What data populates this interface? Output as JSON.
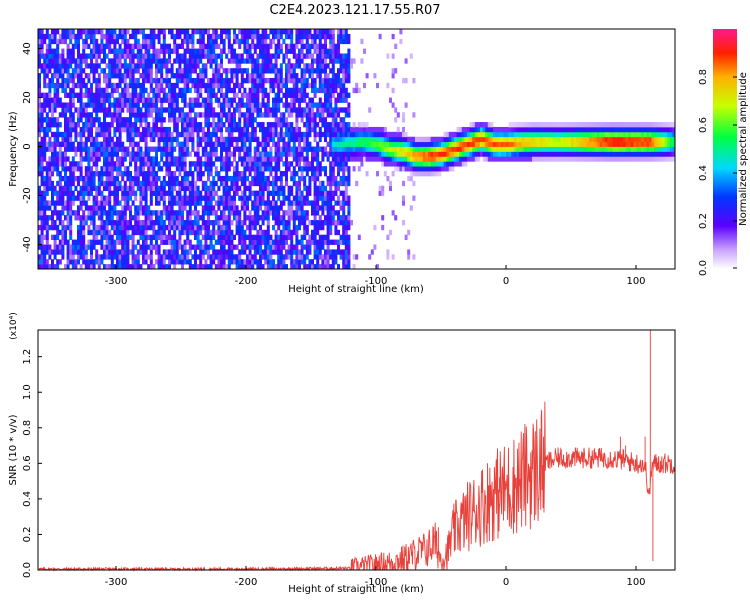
{
  "figure": {
    "title": "C2E4.2023.121.17.55.R07"
  },
  "chart_data": [
    {
      "type": "heatmap",
      "xlabel": "Height of straight line (km)",
      "ylabel": "Frequency (Hz)",
      "xlim": [
        -360,
        130
      ],
      "ylim": [
        -50,
        48
      ],
      "xticks": [
        -300,
        -200,
        -100,
        0,
        100
      ],
      "xtick_labels": [
        "-300",
        "-200",
        "-100",
        "0",
        "100"
      ],
      "yticks": [
        -40,
        -20,
        0,
        20,
        40
      ],
      "ytick_labels": [
        "-40",
        "-20",
        "0",
        "20",
        "40"
      ],
      "colorbar": {
        "label": "Normalized spectral amplitude",
        "range": [
          0,
          1
        ],
        "ticks": [
          0,
          0.2,
          0.4,
          0.6,
          0.8
        ],
        "tick_labels": [
          "0.0",
          "0.2",
          "0.4",
          "0.6",
          "0.8"
        ]
      },
      "description_of_field": {
        "noise_region_x": [
          -360,
          -120
        ],
        "noise_amplitude": [
          0.1,
          0.35
        ],
        "signal_center_frequency_by_height": [
          [
            -130,
            0
          ],
          [
            -110,
            1
          ],
          [
            -100,
            0
          ],
          [
            -90,
            -2
          ],
          [
            -80,
            -3
          ],
          [
            -70,
            -5
          ],
          [
            -60,
            -5
          ],
          [
            -50,
            -4
          ],
          [
            -40,
            -2
          ],
          [
            -30,
            0
          ],
          [
            -20,
            2
          ],
          [
            -10,
            0
          ],
          [
            0,
            0
          ],
          [
            20,
            1
          ],
          [
            40,
            1
          ],
          [
            60,
            1
          ],
          [
            80,
            1
          ],
          [
            100,
            1
          ],
          [
            130,
            1
          ]
        ],
        "signal_peak_amplitude": [
          [
            -130,
            0.45
          ],
          [
            -100,
            0.6
          ],
          [
            -80,
            0.75
          ],
          [
            -60,
            0.9
          ],
          [
            -40,
            0.9
          ],
          [
            -20,
            0.9
          ],
          [
            0,
            0.85
          ],
          [
            40,
            0.7
          ],
          [
            80,
            0.95
          ],
          [
            110,
            0.9
          ],
          [
            130,
            0.5
          ]
        ]
      },
      "grid": false,
      "legend": "none"
    },
    {
      "type": "line",
      "xlabel": "Height of straight line (km)",
      "ylabel": "SNR (10 * v/v)",
      "y_multiplier_label": "(x10⁴)",
      "xlim": [
        -360,
        130
      ],
      "ylim": [
        0,
        1.35
      ],
      "xticks": [
        -300,
        -200,
        -100,
        0,
        100
      ],
      "xtick_labels": [
        "-300",
        "-200",
        "-100",
        "0",
        "100"
      ],
      "yticks": [
        0,
        0.2,
        0.4,
        0.6,
        0.8,
        1.0,
        1.2
      ],
      "ytick_labels": [
        "0.0",
        "0.2",
        "0.4",
        "0.6",
        "0.8",
        "1.0",
        "1.2"
      ],
      "series": [
        {
          "color": "#e8403a",
          "x": [
            -360,
            -300,
            -250,
            -200,
            -150,
            -120,
            -100,
            -90,
            -80,
            -70,
            -60,
            -55,
            -50,
            -45,
            -40,
            -30,
            -20,
            -10,
            0,
            10,
            20,
            30,
            40,
            60,
            80,
            90,
            100,
            105,
            108,
            110,
            112,
            115,
            120,
            125,
            130
          ],
          "values": [
            0.005,
            0.005,
            0.005,
            0.005,
            0.008,
            0.01,
            0.03,
            0.04,
            0.06,
            0.09,
            0.12,
            0.16,
            0.06,
            0.1,
            0.22,
            0.3,
            0.36,
            0.42,
            0.45,
            0.5,
            0.55,
            0.6,
            0.63,
            0.63,
            0.63,
            0.62,
            0.6,
            0.6,
            0.55,
            0.4,
            0.58,
            0.6,
            0.6,
            0.6,
            0.6
          ]
        }
      ],
      "spikes": [
        [
          -52,
          0.24
        ],
        [
          -25,
          0.47
        ],
        [
          -5,
          0.52
        ],
        [
          20,
          0.6
        ],
        [
          88,
          0.75
        ],
        [
          92,
          0.7
        ],
        [
          107,
          0.75
        ],
        [
          111,
          1.35
        ],
        [
          113,
          0.05
        ]
      ],
      "grid": false,
      "legend": "none"
    }
  ]
}
